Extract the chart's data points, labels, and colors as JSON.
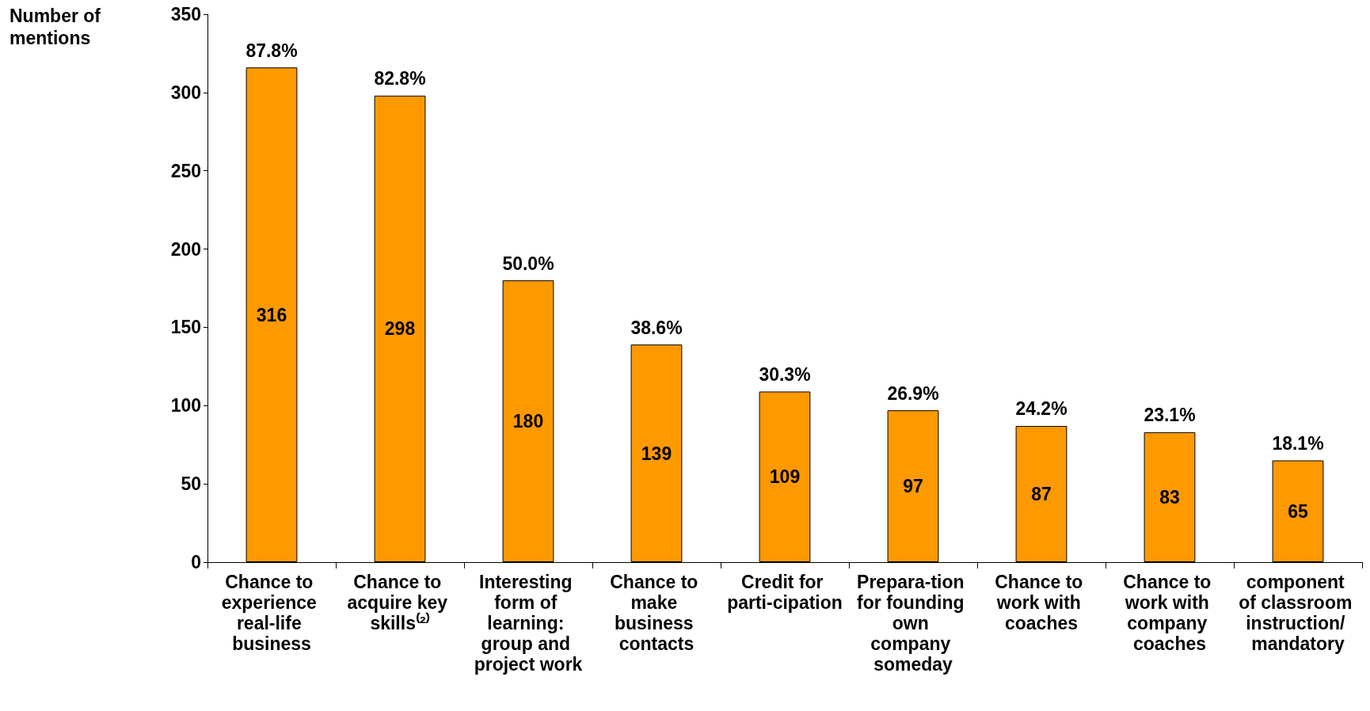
{
  "chart_data": {
    "type": "bar",
    "ylabel": "Number of mentions",
    "categories": [
      "Chance to experience real-life business",
      "Chance to acquire key skills⁽²⁾",
      "Interesting form of learning: group and project work",
      "Chance to make business contacts",
      "Credit for parti-cipation",
      "Prepara-tion for founding own company someday",
      "Chance to work with coaches",
      "Chance to work with company coaches",
      "component of classroom instruction/ mandatory"
    ],
    "values": [
      316,
      298,
      180,
      139,
      109,
      97,
      87,
      83,
      65
    ],
    "color": "#ff9900",
    "ylim": [
      0,
      350
    ],
    "yticks": [
      0,
      50,
      100,
      150,
      200,
      250,
      300,
      350
    ],
    "grid": false,
    "data_labels": true,
    "annotations": [
      {
        "text": "87.8%",
        "x": "Chance to experience real-life business",
        "y": 316
      },
      {
        "text": "82.8%",
        "x": "Chance to acquire key skills⁽²⁾",
        "y": 298
      },
      {
        "text": "50.0%",
        "x": "Interesting form of learning: group and project work",
        "y": 180
      },
      {
        "text": "38.6%",
        "x": "Chance to make business contacts",
        "y": 139
      },
      {
        "text": "30.3%",
        "x": "Credit for parti-cipation",
        "y": 109
      },
      {
        "text": "26.9%",
        "x": "Prepara-tion for founding own company someday",
        "y": 97
      },
      {
        "text": "24.2%",
        "x": "Chance to work with coaches",
        "y": 87
      },
      {
        "text": "23.1%",
        "x": "Chance to work with company coaches",
        "y": 83
      },
      {
        "text": "18.1%",
        "x": "component of classroom instruction/ mandatory",
        "y": 65
      }
    ]
  }
}
